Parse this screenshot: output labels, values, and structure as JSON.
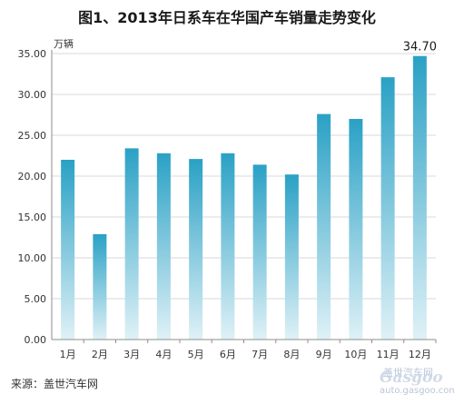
{
  "title": "图1、2013年日系车在华国产车销量走势变化",
  "source": "来源：盖世汽车网",
  "watermark": {
    "line1": "盖世汽车网",
    "logo": "Gasgoo",
    "url": "auto.gasgoo.com"
  },
  "colors": {
    "bar_top": "#2aa1c5",
    "bar_bottom": "#dff1f7",
    "grid": "#d9d9d9",
    "axis": "#8c8c8c"
  },
  "chart_data": {
    "type": "bar",
    "title": "图1、2013年日系车在华国产车销量走势变化",
    "ylabel": "万辆",
    "xlabel": "",
    "categories": [
      "1月",
      "2月",
      "3月",
      "4月",
      "5月",
      "6月",
      "7月",
      "8月",
      "9月",
      "10月",
      "11月",
      "12月"
    ],
    "values": [
      22.0,
      12.9,
      23.4,
      22.8,
      22.1,
      22.8,
      21.4,
      20.2,
      27.6,
      27.0,
      32.1,
      34.7
    ],
    "value_labels": [
      "",
      "",
      "",
      "",
      "",
      "",
      "",
      "",
      "",
      "",
      "",
      "34.70"
    ],
    "ylim": [
      0,
      35
    ],
    "yticks": [
      "0.00",
      "5.00",
      "10.00",
      "15.00",
      "20.00",
      "25.00",
      "30.00",
      "35.00"
    ],
    "ytick_values": [
      0,
      5,
      10,
      15,
      20,
      25,
      30,
      35
    ],
    "grid": true,
    "legend": "none"
  }
}
